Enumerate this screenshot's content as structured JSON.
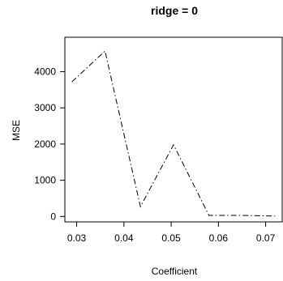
{
  "chart_data": {
    "type": "line",
    "title": "ridge = 0",
    "xlabel": "Coefficient",
    "ylabel": "MSE",
    "xlim": [
      0.0275,
      0.0735
    ],
    "ylim": [
      -150,
      4950
    ],
    "x_ticks": [
      0.03,
      0.04,
      0.05,
      0.06,
      0.07
    ],
    "x_tick_labels": [
      "0.03",
      "0.04",
      "0.05",
      "0.06",
      "0.07"
    ],
    "y_ticks": [
      0,
      1000,
      2000,
      3000,
      4000
    ],
    "y_tick_labels": [
      "0",
      "1000",
      "2000",
      "3000",
      "4000"
    ],
    "series": [
      {
        "line_style": "dot-dash",
        "color": "#000000",
        "x": [
          0.029,
          0.036,
          0.0435,
          0.0505,
          0.058,
          0.065,
          0.072
        ],
        "y": [
          3720,
          4570,
          270,
          1980,
          30,
          30,
          10
        ]
      }
    ],
    "grid": false
  }
}
